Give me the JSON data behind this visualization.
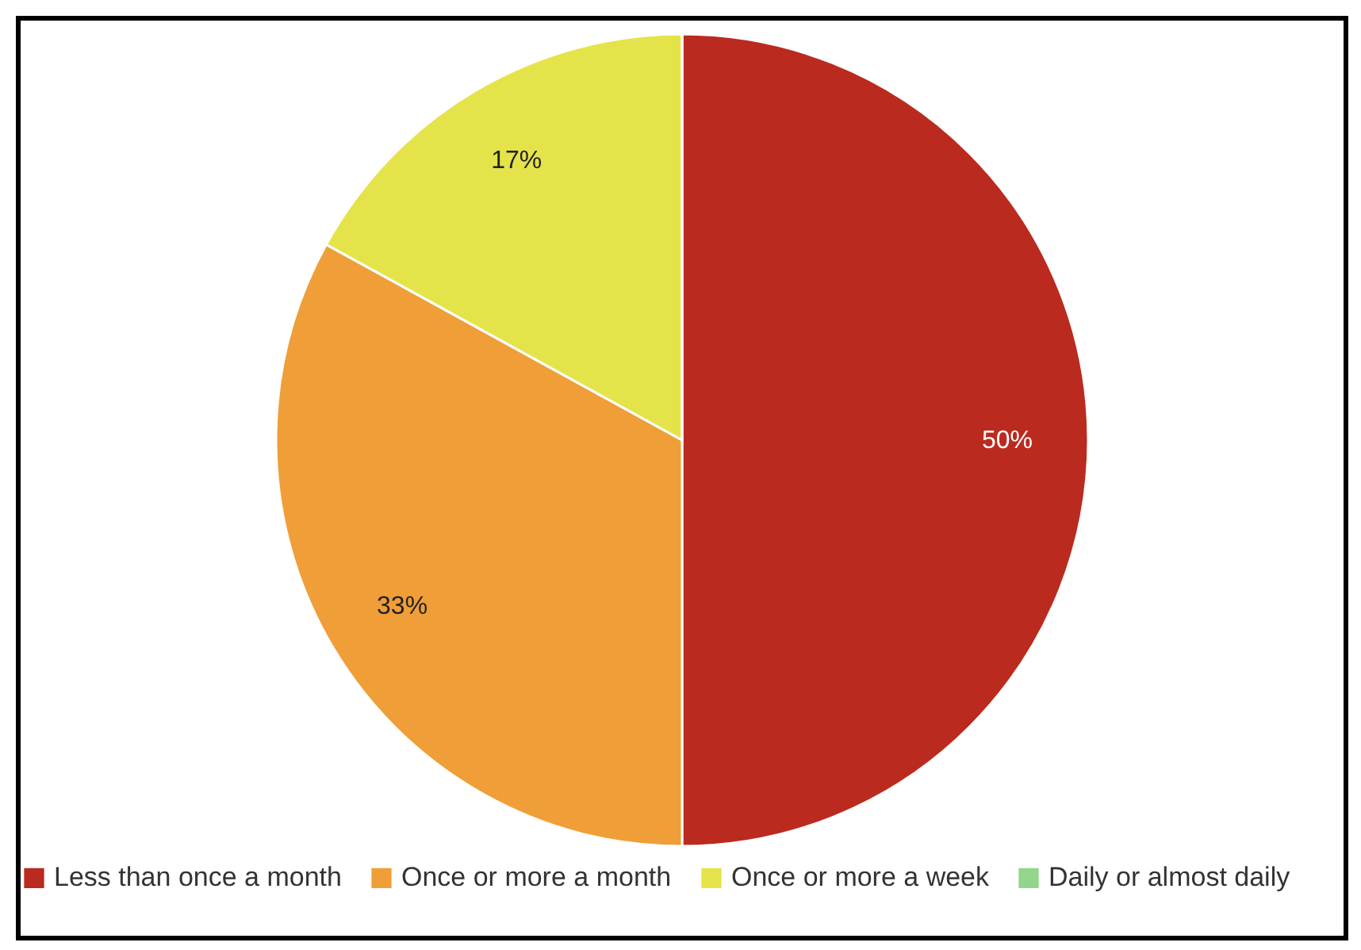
{
  "chart_data": {
    "type": "pie",
    "categories": [
      "Less than once a month",
      "Once or more a month",
      "Once or more a week",
      "Daily or almost daily"
    ],
    "values": [
      50,
      33,
      17,
      0
    ],
    "colors": [
      "#bb2a1e",
      "#f09e38",
      "#e5e34a",
      "#93d58a"
    ],
    "value_labels": [
      "50%",
      "33%",
      "17%",
      null
    ],
    "legend": "bottom"
  }
}
